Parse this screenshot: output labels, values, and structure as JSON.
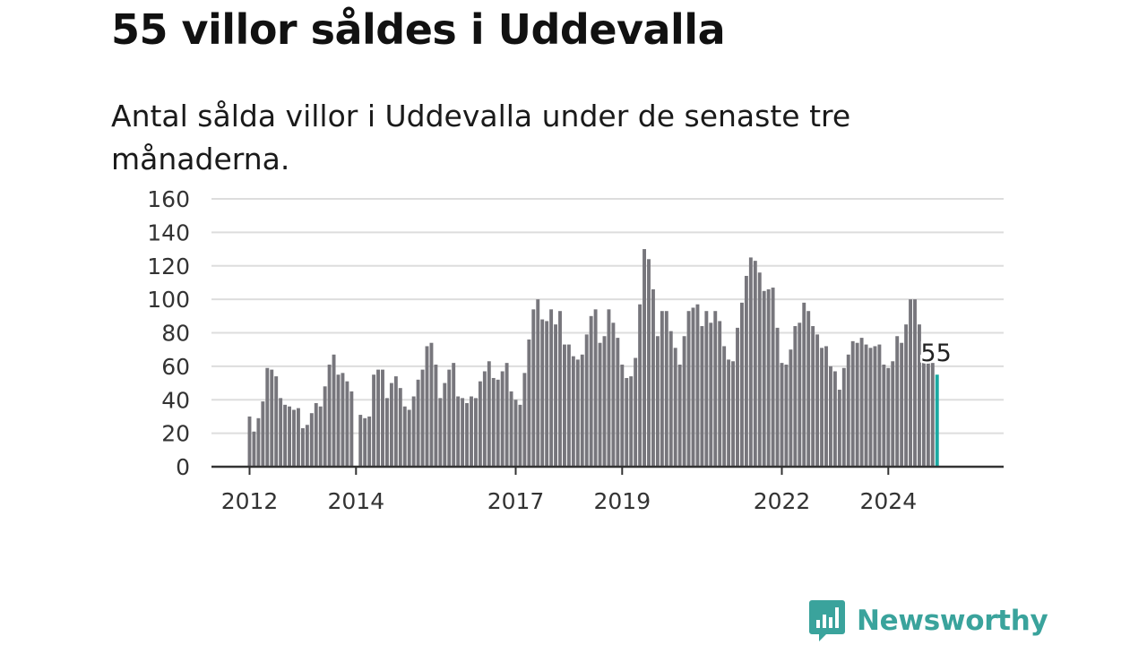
{
  "title": "55 villor såldes i Uddevalla",
  "subtitle": "Antal sålda villor i Uddevalla under de senaste tre månaderna.",
  "brand": {
    "name": "Newsworthy",
    "logo_icon": "bar-chart-speech-bubble-icon"
  },
  "colors": {
    "bar": "#77767c",
    "highlight": "#1aa9a2",
    "grid": "#dddddd",
    "axis": "#333333",
    "brand": "#3aa39c"
  },
  "chart_data": {
    "type": "bar",
    "ylim": [
      0,
      160
    ],
    "yticks": [
      0,
      20,
      40,
      60,
      80,
      100,
      120,
      140,
      160
    ],
    "xticks": [
      {
        "label": "2012",
        "index": 0
      },
      {
        "label": "2014",
        "index": 24
      },
      {
        "label": "2017",
        "index": 60
      },
      {
        "label": "2019",
        "index": 84
      },
      {
        "label": "2022",
        "index": 120
      },
      {
        "label": "2024",
        "index": 144
      }
    ],
    "grid": true,
    "highlight": {
      "value": 55,
      "label": "55"
    },
    "values": [
      30,
      21,
      29,
      39,
      59,
      58,
      54,
      41,
      37,
      36,
      34,
      35,
      23,
      25,
      32,
      38,
      36,
      48,
      61,
      67,
      55,
      56,
      51,
      45,
      null,
      31,
      29,
      30,
      55,
      58,
      58,
      41,
      50,
      54,
      47,
      36,
      34,
      42,
      52,
      58,
      72,
      74,
      61,
      41,
      50,
      58,
      62,
      42,
      41,
      38,
      42,
      41,
      51,
      57,
      63,
      53,
      52,
      57,
      62,
      45,
      40,
      37,
      56,
      76,
      94,
      100,
      88,
      87,
      94,
      85,
      93,
      73,
      73,
      66,
      64,
      67,
      79,
      90,
      94,
      74,
      78,
      94,
      86,
      77,
      61,
      53,
      54,
      65,
      97,
      130,
      124,
      106,
      78,
      93,
      93,
      81,
      71,
      61,
      78,
      93,
      95,
      97,
      84,
      93,
      86,
      93,
      87,
      72,
      64,
      63,
      83,
      98,
      114,
      125,
      123,
      116,
      105,
      106,
      107,
      83,
      62,
      61,
      70,
      84,
      86,
      98,
      93,
      84,
      79,
      71,
      72,
      60,
      57,
      46,
      59,
      67,
      75,
      74,
      77,
      73,
      71,
      72,
      73,
      61,
      59,
      63,
      78,
      74,
      85,
      100,
      100,
      85,
      65,
      62,
      62,
      55
    ]
  }
}
